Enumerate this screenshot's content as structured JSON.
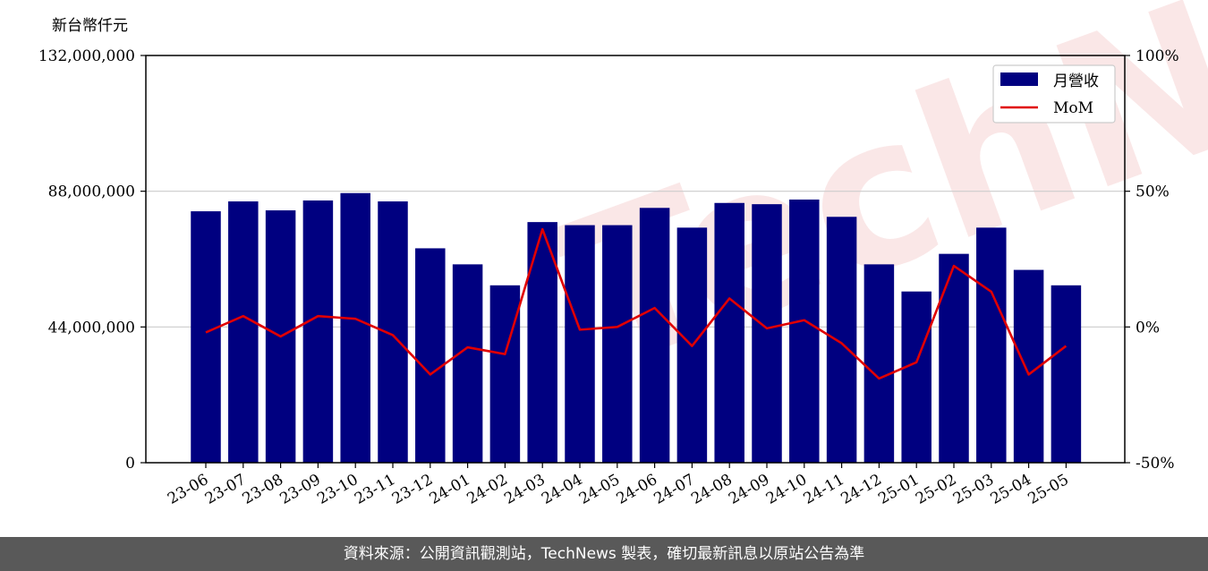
{
  "chart_data": {
    "type": "bar",
    "ylabel": "新台幣仟元",
    "categories": [
      "23-06",
      "23-07",
      "23-08",
      "23-09",
      "23-10",
      "23-11",
      "23-12",
      "24-01",
      "24-02",
      "24-03",
      "24-04",
      "24-05",
      "24-06",
      "24-07",
      "24-08",
      "24-09",
      "24-10",
      "24-11",
      "24-12",
      "25-01",
      "25-02",
      "25-03",
      "25-04",
      "25-05"
    ],
    "series": [
      {
        "name": "月營收",
        "axis": "left",
        "type": "bar",
        "color": "#000080",
        "values": [
          81500000,
          84700000,
          81800000,
          85000000,
          87400000,
          84700000,
          69500000,
          64300000,
          57500000,
          78000000,
          77000000,
          77000000,
          82600000,
          76200000,
          84200000,
          83800000,
          85300000,
          79700000,
          64300000,
          55500000,
          67700000,
          76200000,
          62500000,
          57500000
        ]
      },
      {
        "name": "MoM",
        "axis": "right",
        "type": "line",
        "color": "#e00000",
        "values": [
          -2,
          4,
          -3.5,
          4,
          3,
          -3,
          -17.5,
          -7.5,
          -10,
          36,
          -1,
          0,
          7,
          -7,
          10.5,
          -0.5,
          2.5,
          -6,
          -19,
          -13,
          22.5,
          13,
          -17.5,
          -7
        ]
      }
    ],
    "ylim_left": [
      0,
      132000000
    ],
    "yticks_left": [
      "0",
      "44,000,000",
      "88,000,000",
      "132,000,000"
    ],
    "yticks_left_values": [
      0,
      44000000,
      88000000,
      132000000
    ],
    "ylim_right": [
      -50,
      100
    ],
    "yticks_right": [
      "-50%",
      "0%",
      "50%",
      "100%"
    ],
    "yticks_right_values": [
      -50,
      0,
      50,
      100
    ],
    "grid": "horizontal",
    "legend_position": "top-right",
    "watermark": "TechNews"
  },
  "footer": {
    "text": "資料來源：公開資訊觀測站，TechNews 製表，確切最新訊息以原站公告為準"
  }
}
